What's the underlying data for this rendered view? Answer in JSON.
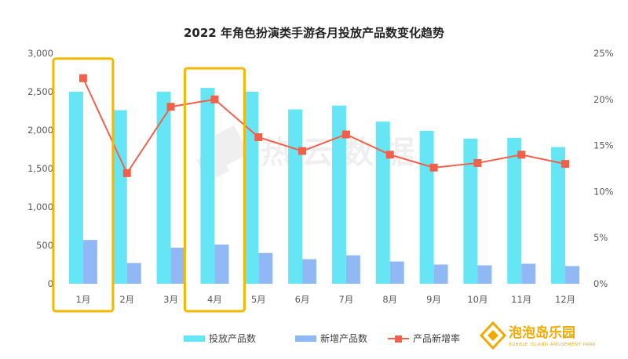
{
  "chart_data": {
    "type": "bar",
    "title": "2022 年角色扮演类手游各月投放产品数变化趋势",
    "categories": [
      "1月",
      "2月",
      "3月",
      "4月",
      "5月",
      "6月",
      "7月",
      "8月",
      "9月",
      "10月",
      "11月",
      "12月"
    ],
    "series": [
      {
        "name": "投放产品数",
        "type": "bar",
        "axis": "left",
        "color": "#66e6f5",
        "values": [
          2500,
          2260,
          2500,
          2550,
          2500,
          2270,
          2320,
          2110,
          1990,
          1890,
          1900,
          1780
        ]
      },
      {
        "name": "新增产品数",
        "type": "bar",
        "axis": "left",
        "color": "#8fb8f5",
        "values": [
          570,
          270,
          470,
          510,
          400,
          320,
          370,
          290,
          250,
          240,
          260,
          230
        ]
      },
      {
        "name": "产品新增率",
        "type": "line",
        "axis": "right",
        "color": "#f0604a",
        "values": [
          22.3,
          12.0,
          19.2,
          20.0,
          15.9,
          14.4,
          16.2,
          14.0,
          12.6,
          13.1,
          14.0,
          13.0
        ]
      }
    ],
    "y_left": {
      "min": 0,
      "max": 3000,
      "ticks": [
        "0",
        "500",
        "1,000",
        "1,500",
        "2,000",
        "2,500",
        "3,000"
      ]
    },
    "y_right": {
      "min": 0,
      "max": 25,
      "ticks": [
        "0%",
        "5%",
        "10%",
        "15%",
        "20%",
        "25%"
      ]
    },
    "highlighted_categories": [
      "1月",
      "4月"
    ],
    "highlight_color": "#f5b800",
    "grid": false,
    "legend_position": "bottom"
  },
  "watermark": {
    "text": "热云数据"
  },
  "logo": {
    "main": "泡泡岛乐园",
    "sub": "BUBBLE ISLAND AMUSEMENT PARK"
  }
}
